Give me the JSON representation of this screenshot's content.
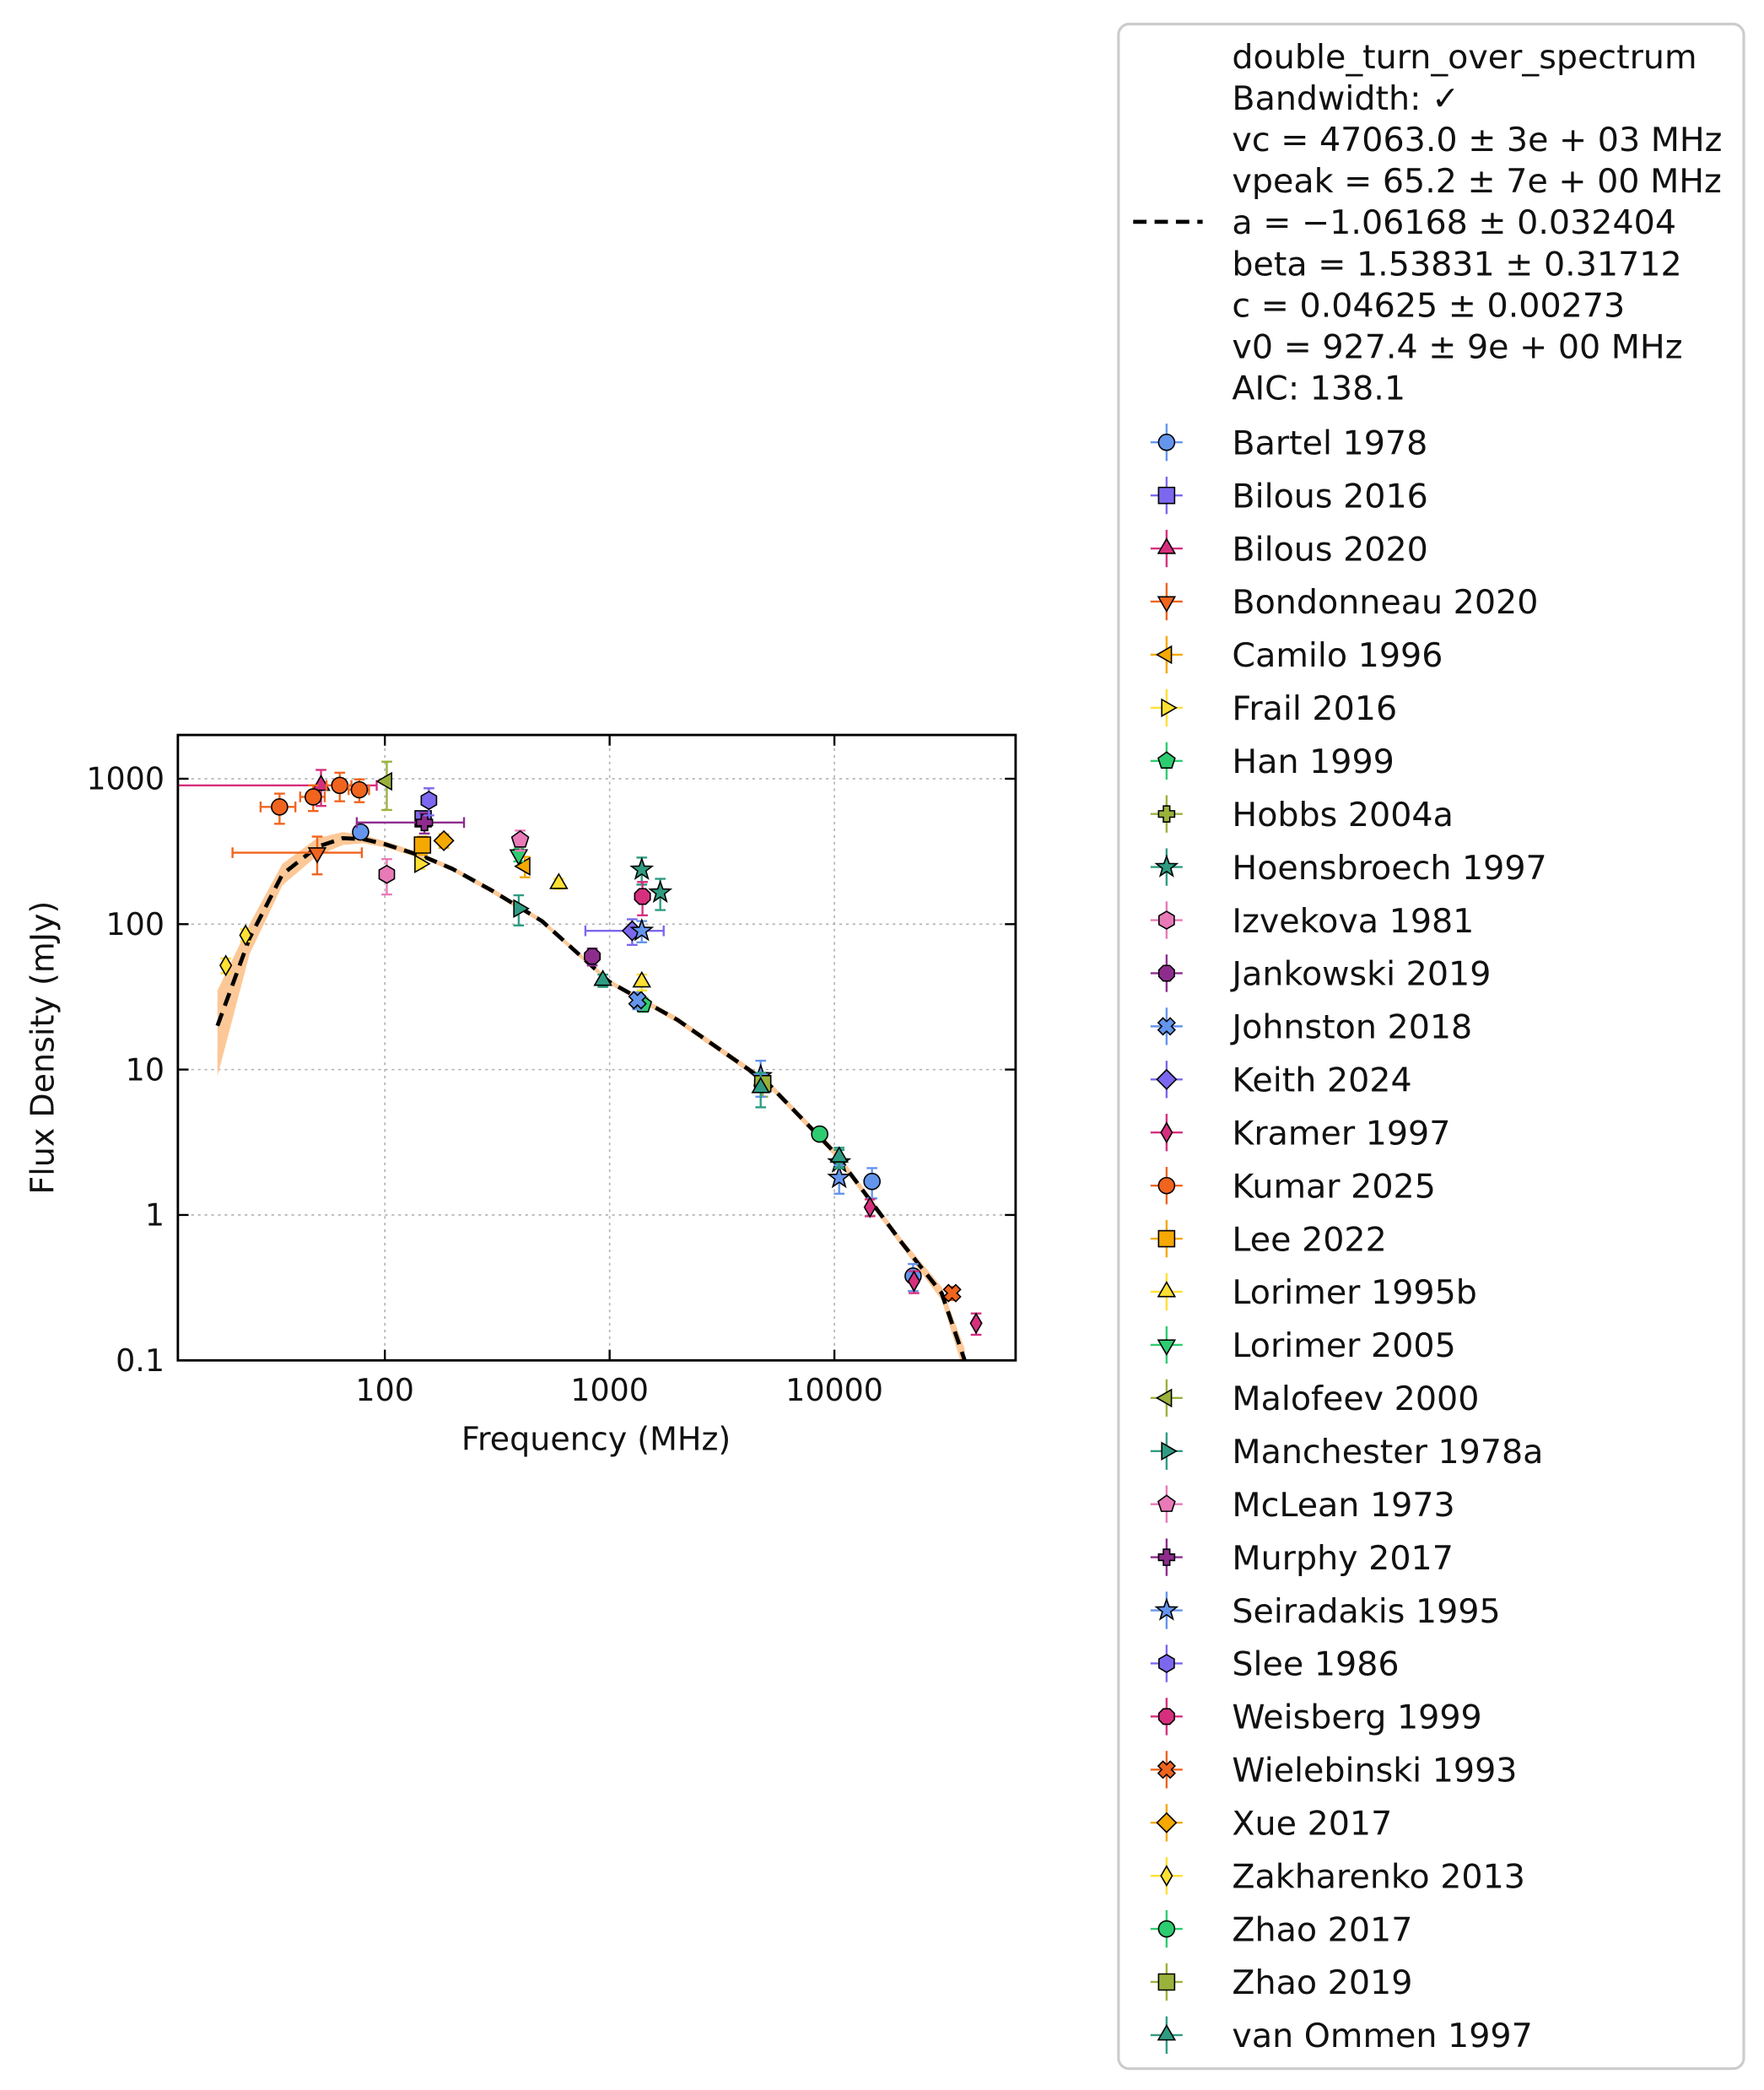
{
  "chart_data": {
    "type": "scatter",
    "x_label": "Frequency (MHz)",
    "y_label": "Flux Density (mJy)",
    "xlog": true,
    "ylog": true,
    "grid": true,
    "xlim": [
      12,
      64000
    ],
    "ylim": [
      0.1,
      2000
    ],
    "xticks": [
      100,
      1000,
      10000
    ],
    "yticks": [
      0.1,
      1,
      10,
      100,
      1000
    ],
    "fit": {
      "color": "#000000",
      "band_color": "#FDBE85",
      "label_lines": [
        "double_turn_over_spectrum",
        "Bandwidth: ✓",
        "vc = 47063.0 ± 3e + 03 MHz",
        "vpeak = 65.2 ± 7e + 00 MHz",
        "a = −1.06168 ± 0.032404",
        "beta = 1.53831 ± 0.31712",
        "c = 0.04625 ± 0.00273",
        "v0 = 927.4 ± 9e + 00 MHz",
        "AIC: 138.1"
      ],
      "x": [
        18,
        25,
        35,
        50,
        65,
        80,
        100,
        150,
        200,
        300,
        500,
        1000,
        2000,
        5000,
        10000,
        20000,
        30000,
        38000
      ],
      "values": [
        20,
        80,
        220,
        340,
        390,
        385,
        355,
        290,
        240,
        170,
        105,
        40,
        22,
        8.2,
        2.7,
        0.64,
        0.29,
        0.1
      ],
      "lower": [
        9,
        62,
        185,
        295,
        350,
        360,
        338,
        278,
        231,
        163,
        101,
        38.5,
        21,
        7.8,
        2.55,
        0.6,
        0.26,
        0.08
      ],
      "upper": [
        35,
        100,
        260,
        390,
        430,
        410,
        372,
        302,
        249,
        177,
        109,
        41.5,
        23,
        8.6,
        2.85,
        0.68,
        0.32,
        0.12
      ]
    },
    "series": [
      {
        "name": "Bartel 1978",
        "color": "#6495ED",
        "marker": "o",
        "x": [
          78,
          14700,
          22400
        ],
        "values": [
          430,
          1.7,
          0.38
        ],
        "yerr": [
          40,
          0.4,
          0.08
        ]
      },
      {
        "name": "Bilous 2016",
        "color": "#7B68EE",
        "marker": "s",
        "x": [
          148
        ],
        "values": [
          530
        ],
        "yerr": [
          60
        ]
      },
      {
        "name": "Bilous 2020",
        "color": "#D62F7E",
        "marker": "^",
        "x": [
          52
        ],
        "values": [
          900
        ],
        "yerr": [
          250
        ],
        "xerr": [
          40
        ]
      },
      {
        "name": "Bondonneau 2020",
        "color": "#F0641E",
        "marker": "v",
        "x": [
          50
        ],
        "values": [
          310
        ],
        "yerr": [
          90
        ],
        "xerr": [
          29
        ]
      },
      {
        "name": "Camilo 1996",
        "color": "#F5A800",
        "marker": "<",
        "x": [
          420
        ],
        "values": [
          250
        ],
        "yerr": [
          40
        ]
      },
      {
        "name": "Frail 2016",
        "color": "#FFE033",
        "marker": ">",
        "x": [
          143
        ],
        "values": [
          260
        ],
        "yerr": [
          20
        ]
      },
      {
        "name": "Han 1999",
        "color": "#2ECC71",
        "marker": "p",
        "x": [
          1408
        ],
        "values": [
          28
        ],
        "yerr": [
          3
        ]
      },
      {
        "name": "Hobbs 2004a",
        "color": "#9AB23B",
        "marker": "P",
        "x": [
          4800
        ],
        "values": [
          8
        ],
        "yerr": [
          1.5
        ]
      },
      {
        "name": "Hoensbroech 1997",
        "color": "#2E9C82",
        "marker": "*",
        "x": [
          1390,
          1680,
          10500
        ],
        "values": [
          237,
          165,
          2.3
        ],
        "yerr": [
          50,
          40,
          0.5
        ]
      },
      {
        "name": "Izvekova 1981",
        "color": "#E87AB8",
        "marker": "h",
        "x": [
          102
        ],
        "values": [
          220
        ],
        "yerr": [
          60
        ]
      },
      {
        "name": "Jankowski 2019",
        "color": "#8E2C8E",
        "marker": "8",
        "x": [
          837
        ],
        "values": [
          60
        ],
        "yerr": [
          8
        ]
      },
      {
        "name": "Johnston 2018",
        "color": "#6495ED",
        "marker": "X",
        "x": [
          1330
        ],
        "values": [
          30
        ],
        "yerr": [
          4
        ]
      },
      {
        "name": "Keith 2024",
        "color": "#7B68EE",
        "marker": "D",
        "x": [
          1260
        ],
        "values": [
          90
        ],
        "yerr": [
          18
        ],
        "xerr": [
          480
        ]
      },
      {
        "name": "Kramer 1997",
        "color": "#D62F7E",
        "marker": "d",
        "x": [
          14400,
          22600,
          42700
        ],
        "values": [
          1.13,
          0.35,
          0.18
        ],
        "yerr": [
          0.15,
          0.06,
          0.03
        ]
      },
      {
        "name": "Kumar 2025",
        "color": "#F0641E",
        "marker": "o",
        "x": [
          34,
          48,
          63,
          77
        ],
        "values": [
          640,
          750,
          900,
          840
        ],
        "yerr": [
          150,
          150,
          200,
          150
        ],
        "xerr": [
          6,
          6,
          8,
          8
        ]
      },
      {
        "name": "Lee 2022",
        "color": "#F5A800",
        "marker": "s",
        "x": [
          147
        ],
        "values": [
          350
        ],
        "yerr": [
          50
        ]
      },
      {
        "name": "Lorimer 1995b",
        "color": "#FFE033",
        "marker": "^",
        "x": [
          594,
          1390
        ],
        "values": [
          190,
          40
        ],
        "yerr": [
          15,
          5
        ]
      },
      {
        "name": "Lorimer 2005",
        "color": "#2ECC71",
        "marker": "v",
        "x": [
          394
        ],
        "values": [
          300
        ],
        "yerr": [
          30
        ]
      },
      {
        "name": "Malofeev 2000",
        "color": "#9AB23B",
        "marker": "<",
        "x": [
          102
        ],
        "values": [
          960
        ],
        "yerr": [
          350
        ]
      },
      {
        "name": "Manchester 1978a",
        "color": "#2E9C82",
        "marker": ">",
        "x": [
          394
        ],
        "values": [
          128
        ],
        "yerr": [
          30
        ]
      },
      {
        "name": "McLean 1973",
        "color": "#E87AB8",
        "marker": "p",
        "x": [
          400
        ],
        "values": [
          380
        ],
        "yerr": [
          60
        ]
      },
      {
        "name": "Murphy 2017",
        "color": "#8E2C8E",
        "marker": "P",
        "x": [
          150
        ],
        "values": [
          500
        ],
        "yerr": [
          80
        ],
        "xerr": [
          75
        ]
      },
      {
        "name": "Seiradakis 1995",
        "color": "#6495ED",
        "marker": "*",
        "x": [
          1390,
          4700,
          10500
        ],
        "values": [
          90,
          9,
          1.8
        ],
        "yerr": [
          15,
          2.5,
          0.4
        ]
      },
      {
        "name": "Slee 1986",
        "color": "#7B68EE",
        "marker": "h",
        "x": [
          157
        ],
        "values": [
          710
        ],
        "yerr": [
          150
        ]
      },
      {
        "name": "Weisberg 1999",
        "color": "#D62F7E",
        "marker": "8",
        "x": [
          1400
        ],
        "values": [
          155
        ],
        "yerr": [
          40
        ]
      },
      {
        "name": "Wielebinski 1993",
        "color": "#F0641E",
        "marker": "X",
        "x": [
          33400
        ],
        "values": [
          0.29
        ],
        "yerr": [
          0.03
        ]
      },
      {
        "name": "Xue 2017",
        "color": "#F5A800",
        "marker": "D",
        "x": [
          183
        ],
        "values": [
          375
        ],
        "yerr": [
          40
        ]
      },
      {
        "name": "Zakharenko 2013",
        "color": "#FFE033",
        "marker": "d",
        "x": [
          19.6,
          24
        ],
        "values": [
          52,
          84
        ],
        "yerr": [
          6,
          8
        ]
      },
      {
        "name": "Zhao 2017",
        "color": "#2ECC71",
        "marker": "o",
        "x": [
          8600
        ],
        "values": [
          3.6
        ],
        "yerr": [
          0.3
        ]
      },
      {
        "name": "Zhao 2019",
        "color": "#9AB23B",
        "marker": "s",
        "x": [
          4800
        ],
        "values": [
          8
        ],
        "yerr": [
          1
        ]
      },
      {
        "name": "van Ommen 1997",
        "color": "#2E9C82",
        "marker": "^",
        "x": [
          933,
          4700,
          10500
        ],
        "values": [
          41,
          7.5,
          2.5
        ],
        "yerr": [
          4,
          2,
          0.4
        ]
      }
    ]
  }
}
